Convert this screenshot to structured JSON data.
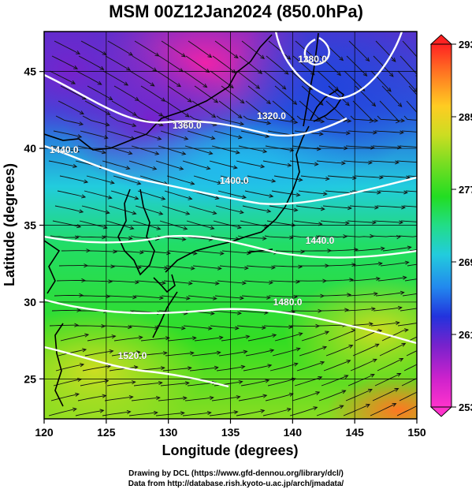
{
  "title": "MSM 00Z12Jan2024 (850.0hPa)",
  "x_axis": {
    "label": "Longitude (degrees)",
    "min": 120,
    "max": 150,
    "ticks": [
      "120",
      "125",
      "130",
      "135",
      "140",
      "145",
      "150"
    ]
  },
  "y_axis": {
    "label": "Latitude (degrees)",
    "min": 22.4,
    "max": 47.6,
    "ticks": [
      "25",
      "30",
      "35",
      "40",
      "45"
    ]
  },
  "colorbar": {
    "min": 253,
    "max": 293,
    "ticks": [
      "253",
      "261",
      "269",
      "277",
      "285",
      "293"
    ],
    "colors": [
      "#ff33cc",
      "#cc22cc",
      "#7722cc",
      "#2233dd",
      "#2288ee",
      "#22ccdd",
      "#22dd88",
      "#22dd22",
      "#77dd22",
      "#ccdd22",
      "#ffcc22",
      "#ff7722",
      "#ff2222"
    ]
  },
  "contours": [
    {
      "label": "1280.0",
      "lon": 141.6,
      "lat": 45.6
    },
    {
      "label": "1320.0",
      "lon": 138.3,
      "lat": 41.9
    },
    {
      "label": "1360.0",
      "lon": 131.5,
      "lat": 41.3
    },
    {
      "label": "1440.0",
      "lon": 121.6,
      "lat": 39.7
    },
    {
      "label": "1400.0",
      "lon": 135.3,
      "lat": 37.7
    },
    {
      "label": "1440.0",
      "lon": 142.2,
      "lat": 33.8
    },
    {
      "label": "1480.0",
      "lon": 139.6,
      "lat": 29.8
    },
    {
      "label": "1520.0",
      "lon": 127.1,
      "lat": 26.3
    }
  ],
  "footer": {
    "credit": "Drawing by DCL (https://www.gfd-dennou.org/library/dcl/)",
    "source": "Data from http://database.rish.kyoto-u.ac.jp/arch/jmadata/"
  }
}
